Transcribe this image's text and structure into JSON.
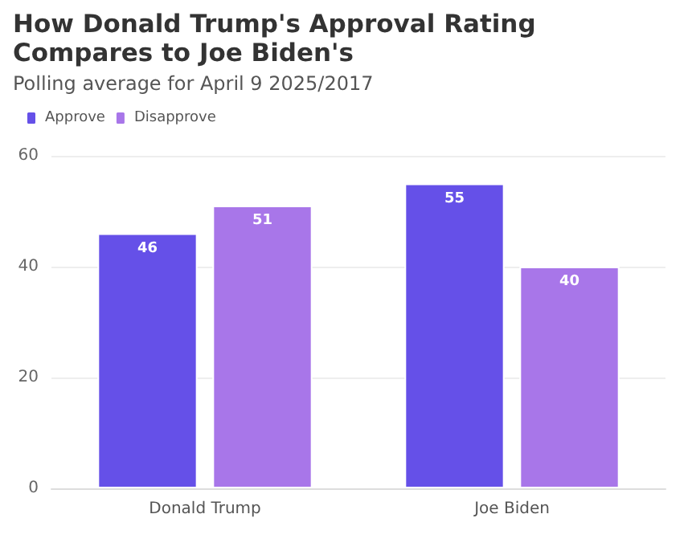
{
  "chart_data": {
    "type": "bar",
    "title": "How Donald Trump's Approval Rating Compares to Joe Biden's",
    "subtitle": "Polling average for April 9 2025/2017",
    "categories": [
      "Donald Trump",
      "Joe Biden"
    ],
    "series": [
      {
        "name": "Approve",
        "color": "#6550e8",
        "values": [
          46,
          55
        ]
      },
      {
        "name": "Disapprove",
        "color": "#a876e9",
        "values": [
          51,
          40
        ]
      }
    ],
    "ylim": [
      0,
      60
    ],
    "yticks": [
      0,
      20,
      40,
      60
    ],
    "grid": "y",
    "legend": "top left",
    "data_labels": true
  }
}
